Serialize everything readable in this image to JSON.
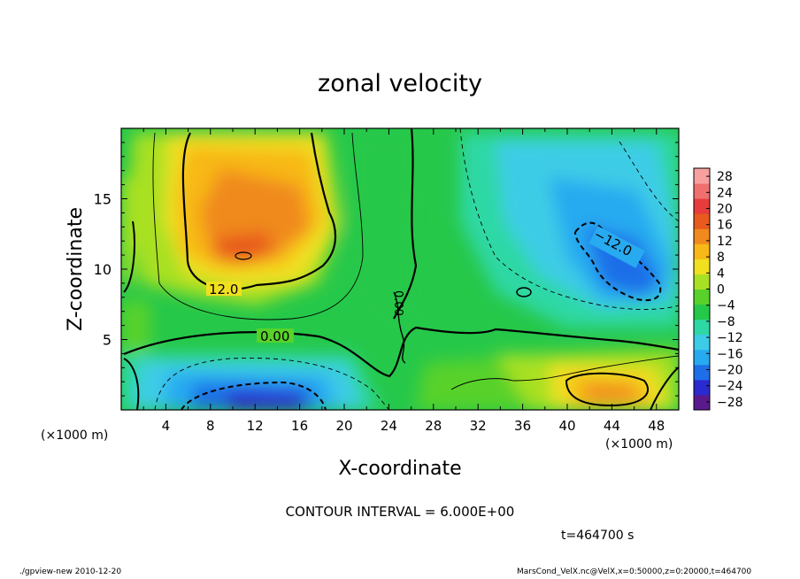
{
  "chart_data": {
    "type": "heatmap",
    "title": "zonal velocity",
    "xlabel": "X-coordinate",
    "ylabel": "Z-coordinate",
    "x_unit_left": "(×1000 m)",
    "x_unit_right": "(×1000 m)",
    "xlim": [
      0,
      50
    ],
    "ylim": [
      0,
      20
    ],
    "x_ticks": [
      4,
      8,
      12,
      16,
      20,
      24,
      28,
      32,
      36,
      40,
      44,
      48
    ],
    "y_ticks": [
      5,
      10,
      15
    ],
    "colorbar": {
      "ticks": [
        28,
        24,
        20,
        16,
        12,
        8,
        4,
        0,
        -4,
        -8,
        -12,
        -16,
        -20,
        -24,
        -28
      ],
      "tick_labels": [
        "28",
        "24",
        "20",
        "16",
        "12",
        "8",
        "4",
        "0",
        "−4",
        "−8",
        "−12",
        "−16",
        "−20",
        "−24",
        "−28"
      ],
      "range": [
        -30,
        30
      ],
      "colors": [
        "#5a1a8c",
        "#2a2ad0",
        "#1e6ee8",
        "#28aaf0",
        "#3ccce6",
        "#2ed8a4",
        "#26c84a",
        "#58d22a",
        "#a8e024",
        "#f0e020",
        "#f8b818",
        "#f08a1e",
        "#e85a1e",
        "#e83c3c",
        "#f07070",
        "#f8a0a0"
      ]
    },
    "contour_labels": [
      "12.0",
      "0.00",
      "0.00",
      "−12.0"
    ],
    "contour_interval_label": "CONTOUR INTERVAL = 6.000E+00",
    "time_label": "t=464700 s",
    "field_features": [
      {
        "kind": "max",
        "x": 11,
        "z": 12.5,
        "value": 18
      },
      {
        "kind": "max",
        "x": 44,
        "z": 1.5,
        "value": 17
      },
      {
        "kind": "min",
        "x": 14,
        "z": 0.5,
        "value": -18
      },
      {
        "kind": "min",
        "x": 45,
        "z": 10.5,
        "value": -12
      }
    ]
  },
  "footer": {
    "left": "./gpview-new   2010-12-20",
    "right": "MarsCond_VelX.nc@VelX,x=0:50000,z=0:20000,t=464700"
  }
}
